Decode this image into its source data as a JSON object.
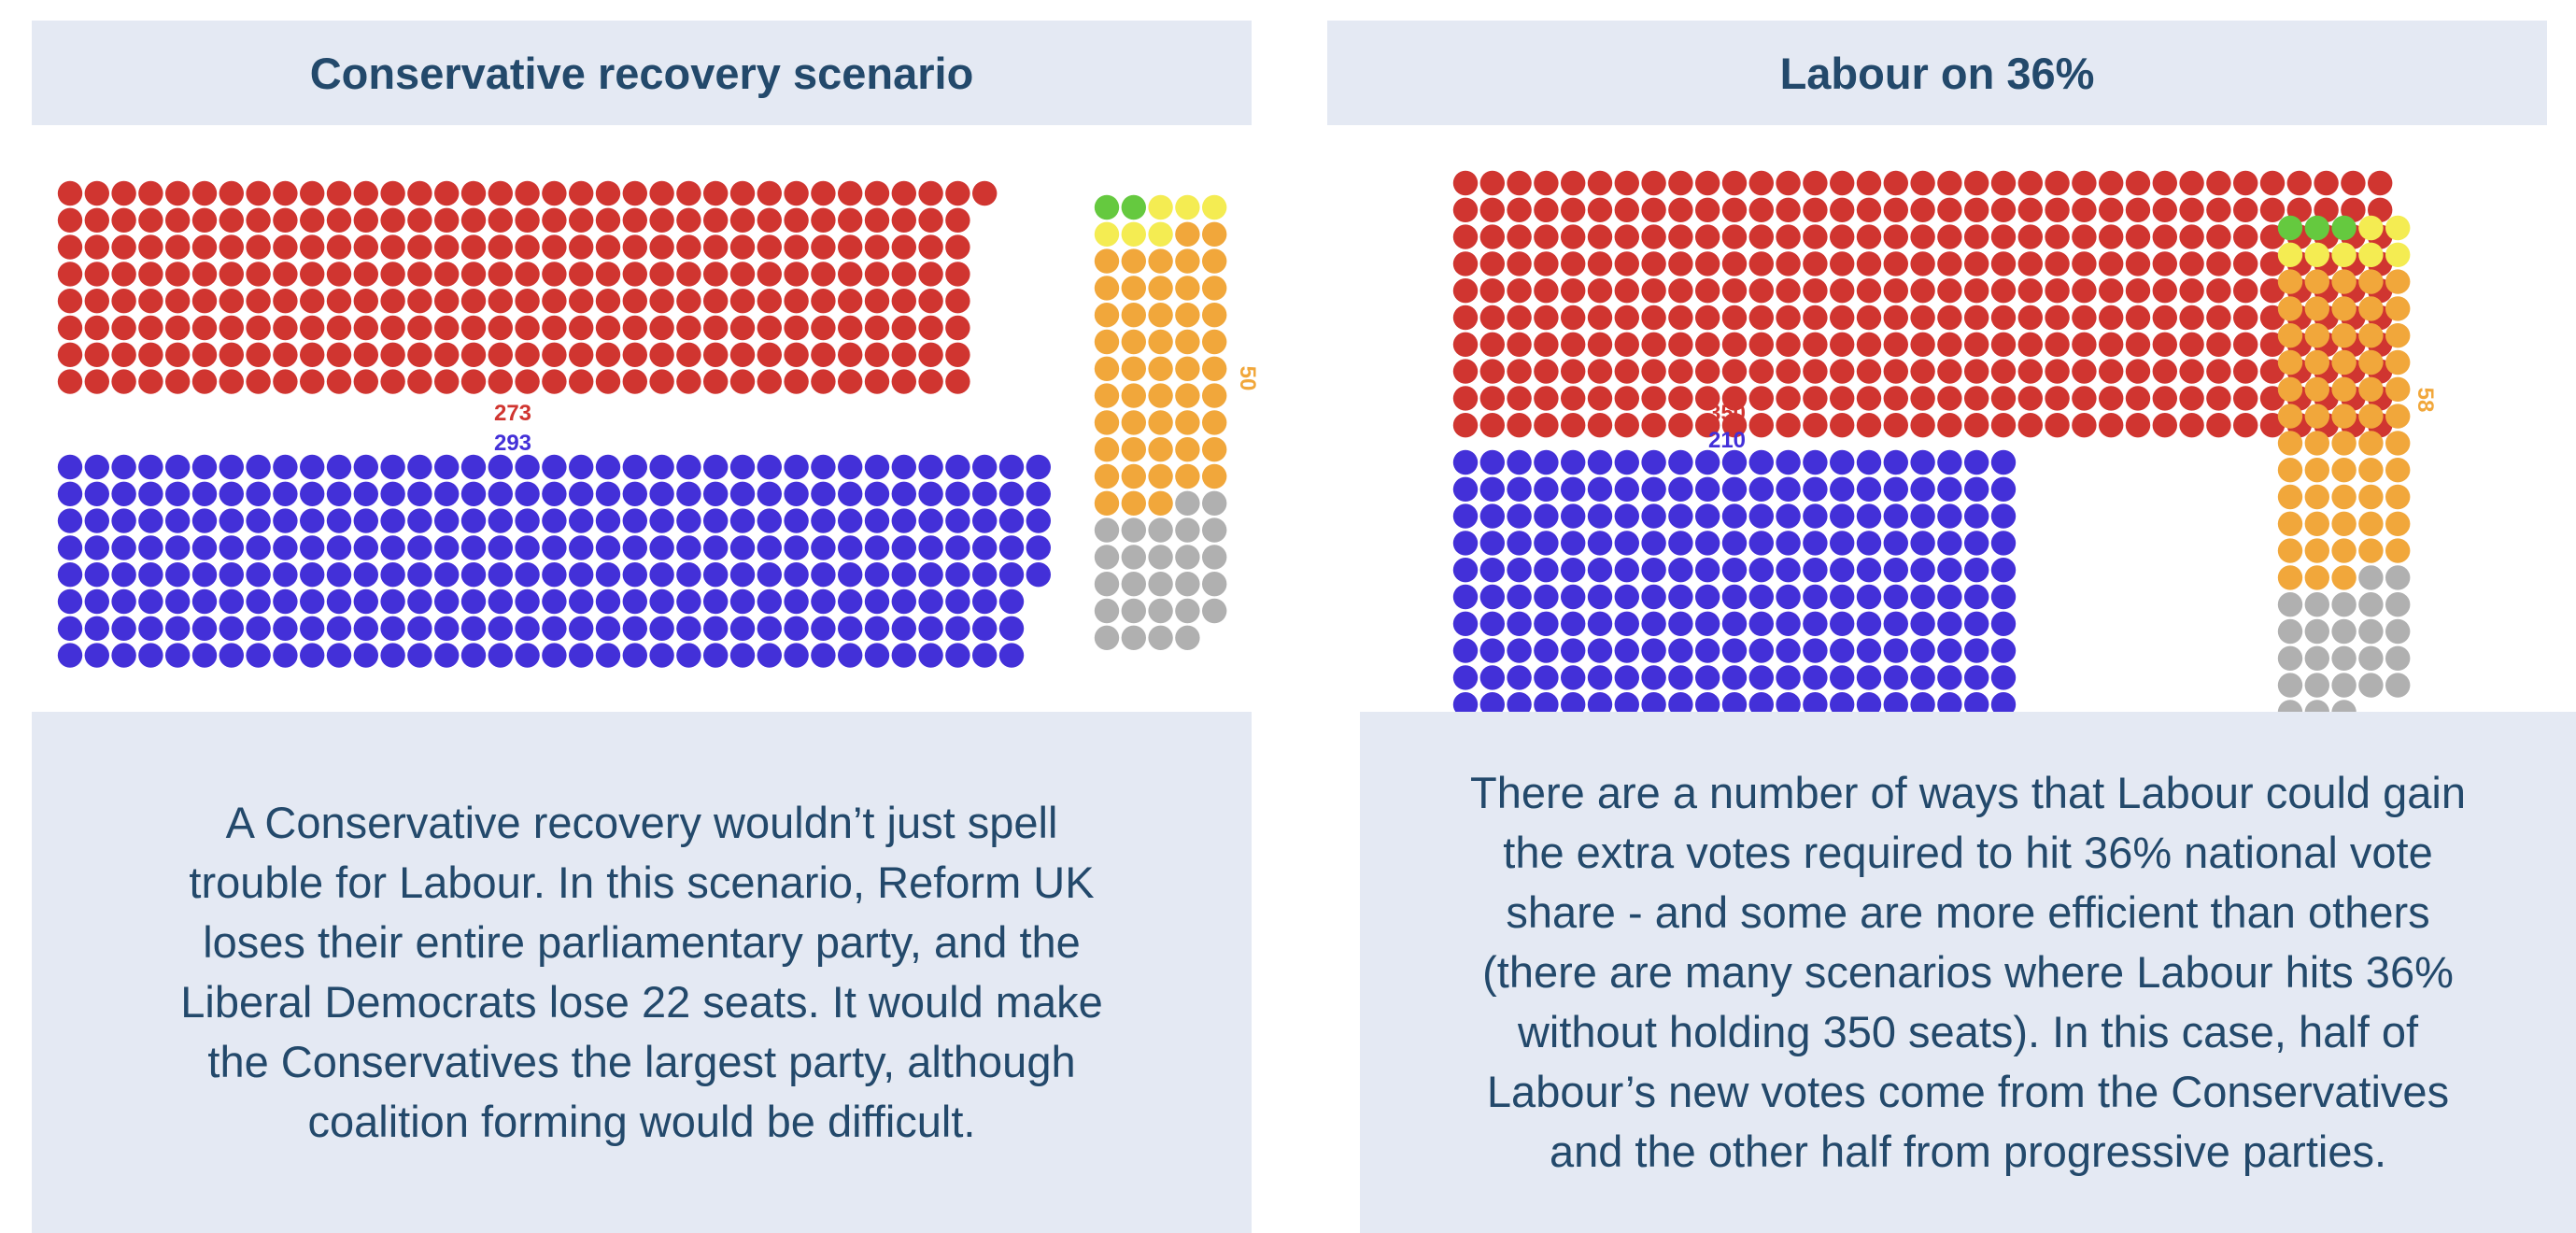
{
  "panels": [
    {
      "title": "Conservative recovery scenario",
      "description": "A Conservative recovery wouldn’t just spell trouble for Labour.  In this scenario, Reform UK loses their entire parliamentary party, and the Liberal Democrats lose 22 seats. It would make the Conservatives the largest party, although coalition forming would be difficult."
    },
    {
      "title": "Labour on 36%",
      "description": "There are a number of ways that Labour could gain the extra votes required to hit 36% national vote share - and some are more efficient than others (there are many scenarios where Labour hits 36% without holding 350 seats). In this case, half of Labour’s new votes come from the Conservatives and the other half from progressive parties."
    }
  ],
  "colors": {
    "labour": "#d03530",
    "conservative": "#4330d8",
    "green": "#65c93f",
    "yellow": "#f4ec52",
    "libdem": "#f1a73b",
    "other": "#b0b0b0"
  },
  "chart_data": [
    {
      "type": "waffle",
      "title": "Conservative recovery scenario",
      "series": [
        {
          "name": "Labour",
          "seats": 273,
          "label": "273"
        },
        {
          "name": "Conservative",
          "seats": 293,
          "label": "293"
        },
        {
          "name": "Green",
          "seats": 2
        },
        {
          "name": "Other (yellow)",
          "seats": 6
        },
        {
          "name": "Liberal Democrat",
          "seats": 50,
          "label": "50"
        },
        {
          "name": "Other (grey)",
          "seats": 26
        }
      ]
    },
    {
      "type": "waffle",
      "title": "Labour on 36%",
      "series": [
        {
          "name": "Labour",
          "seats": 350,
          "label": "350"
        },
        {
          "name": "Conservative",
          "seats": 210,
          "label": "210"
        },
        {
          "name": "Green",
          "seats": 3
        },
        {
          "name": "Other (yellow)",
          "seats": 7
        },
        {
          "name": "Liberal Democrat",
          "seats": 58,
          "label": "58"
        },
        {
          "name": "Other (grey)",
          "seats": 25
        }
      ]
    }
  ]
}
